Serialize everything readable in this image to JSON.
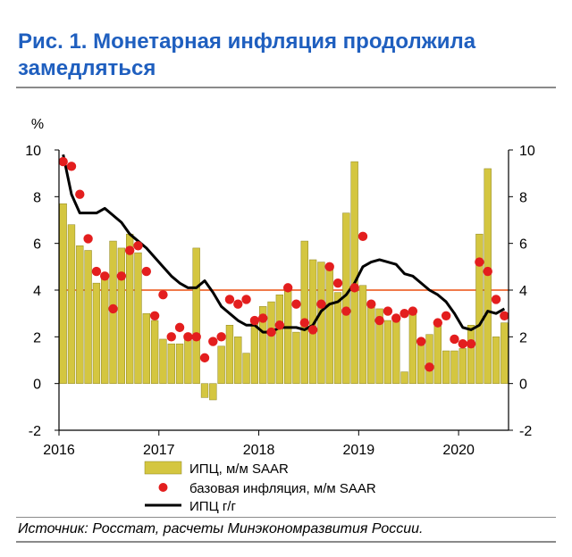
{
  "title": "Рис. 1. Монетарная инфляция продолжила замедляться",
  "source": "Источник: Росстат, расчеты Минэкономразвития России.",
  "chart_data": {
    "type": "bar",
    "ylabel": "%",
    "ylim": [
      -2,
      10
    ],
    "yticks": [
      -2,
      0,
      2,
      4,
      6,
      8,
      10
    ],
    "xticks": [
      {
        "label": "2016",
        "x": 2016.0
      },
      {
        "label": "2017",
        "x": 2017.0
      },
      {
        "label": "2018",
        "x": 2018.0
      },
      {
        "label": "2019",
        "x": 2019.0
      },
      {
        "label": "2020",
        "x": 2020.0
      }
    ],
    "reference_line": 4,
    "colors": {
      "bars": "#d4c640",
      "dots": "#e31e1e",
      "line": "#000000",
      "reference": "#f07a4a"
    },
    "legend": [
      {
        "key": "bars",
        "label": "ИПЦ, м/м SAAR"
      },
      {
        "key": "dots",
        "label": "базовая инфляция,  м/м SAAR"
      },
      {
        "key": "line",
        "label": "ИПЦ г/г"
      }
    ],
    "months": [
      "2016-01",
      "2016-02",
      "2016-03",
      "2016-04",
      "2016-05",
      "2016-06",
      "2016-07",
      "2016-08",
      "2016-09",
      "2016-10",
      "2016-11",
      "2016-12",
      "2017-01",
      "2017-02",
      "2017-03",
      "2017-04",
      "2017-05",
      "2017-06",
      "2017-07",
      "2017-08",
      "2017-09",
      "2017-10",
      "2017-11",
      "2017-12",
      "2018-01",
      "2018-02",
      "2018-03",
      "2018-04",
      "2018-05",
      "2018-06",
      "2018-07",
      "2018-08",
      "2018-09",
      "2018-10",
      "2018-11",
      "2018-12",
      "2019-01",
      "2019-02",
      "2019-03",
      "2019-04",
      "2019-05",
      "2019-06",
      "2019-07",
      "2019-08",
      "2019-09",
      "2019-10",
      "2019-11",
      "2019-12",
      "2020-01",
      "2020-02",
      "2020-03",
      "2020-04",
      "2020-05",
      "2020-06"
    ],
    "series": [
      {
        "key": "bars",
        "name": "ИПЦ, м/м SAAR",
        "values": [
          7.7,
          6.8,
          5.9,
          5.7,
          4.3,
          4.5,
          6.1,
          5.8,
          6.4,
          5.6,
          3.0,
          2.7,
          1.9,
          1.7,
          1.7,
          2.1,
          5.8,
          -0.6,
          -0.7,
          1.6,
          2.5,
          2.0,
          1.3,
          2.8,
          3.3,
          3.5,
          3.8,
          4.0,
          2.2,
          6.1,
          5.3,
          5.2,
          5.0,
          3.9,
          7.3,
          9.5,
          4.2,
          3.3,
          3.2,
          2.7,
          2.9,
          0.5,
          3.0,
          1.9,
          2.1,
          2.5,
          1.4,
          1.4,
          1.5,
          2.5,
          6.4,
          9.2,
          2.0,
          2.6
        ]
      },
      {
        "key": "dots",
        "name": "базовая инфляция,  м/м SAAR",
        "values": [
          9.5,
          9.3,
          8.1,
          6.2,
          4.8,
          4.6,
          3.2,
          4.6,
          5.7,
          5.9,
          4.8,
          2.9,
          3.8,
          2.0,
          2.4,
          2.0,
          2.0,
          1.1,
          1.8,
          2.0,
          3.6,
          3.4,
          3.6,
          2.7,
          2.8,
          2.2,
          2.5,
          4.1,
          3.4,
          2.6,
          2.3,
          3.4,
          5.0,
          4.3,
          3.1,
          4.1,
          6.3,
          3.4,
          2.7,
          3.1,
          2.8,
          3.0,
          3.1,
          1.8,
          0.7,
          2.6,
          2.9,
          1.9,
          1.7,
          1.7,
          5.2,
          4.8,
          3.6,
          2.9
        ]
      },
      {
        "key": "line",
        "name": "ИПЦ г/г",
        "values": [
          9.8,
          8.1,
          7.3,
          7.3,
          7.3,
          7.5,
          7.2,
          6.9,
          6.4,
          6.1,
          5.8,
          5.4,
          5.0,
          4.6,
          4.3,
          4.1,
          4.1,
          4.4,
          3.9,
          3.3,
          3.0,
          2.7,
          2.5,
          2.5,
          2.2,
          2.2,
          2.4,
          2.4,
          2.4,
          2.3,
          2.5,
          3.1,
          3.4,
          3.5,
          3.8,
          4.3,
          5.0,
          5.2,
          5.3,
          5.2,
          5.1,
          4.7,
          4.6,
          4.3,
          4.0,
          3.8,
          3.5,
          3.0,
          2.4,
          2.3,
          2.5,
          3.1,
          3.0,
          3.2
        ]
      }
    ]
  }
}
